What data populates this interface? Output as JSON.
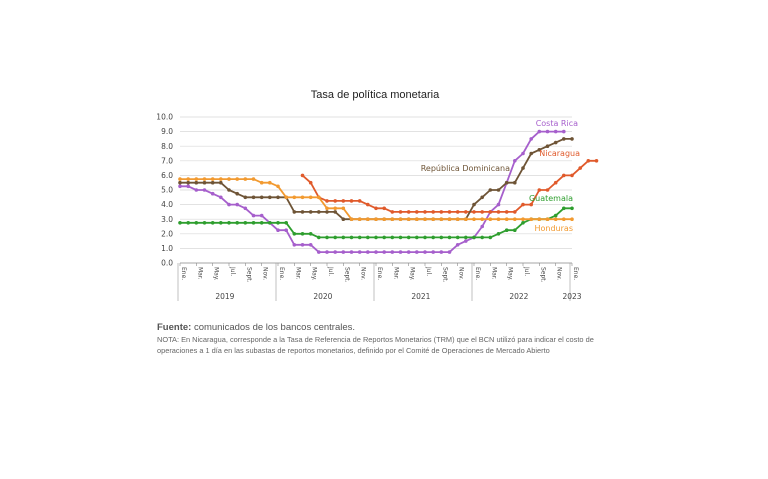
{
  "chart_data": {
    "type": "line",
    "title": "Tasa de política monetaria",
    "y_ticks": [
      "0.0",
      "1.0",
      "2.0",
      "3.0",
      "4.0",
      "5.0",
      "6.0",
      "7.0",
      "8.0",
      "9.0",
      "10.0"
    ],
    "ylim": [
      0,
      10
    ],
    "x_range": [
      "2019-01",
      "2023-01"
    ],
    "x_tick_labels": [
      "Ene.",
      "Mar.",
      "May.",
      "Jul.",
      "Sept.",
      "Nov.",
      "Ene.",
      "Mar.",
      "May.",
      "Jul.",
      "Sept.",
      "Nov.",
      "Ene.",
      "Mar.",
      "May.",
      "Jul.",
      "Sept.",
      "Nov.",
      "Ene.",
      "Mar.",
      "May.",
      "Jul.",
      "Sept.",
      "Nov.",
      "Ene."
    ],
    "year_labels": [
      "2019",
      "2020",
      "2021",
      "2022",
      "2023"
    ],
    "grid": true,
    "series": [
      {
        "name": "Costa Rica",
        "color": "#a65fcc",
        "x_start": "2019-01",
        "values": [
          5.25,
          5.25,
          5.0,
          5.0,
          4.75,
          4.5,
          4.0,
          4.0,
          3.75,
          3.25,
          3.25,
          2.75,
          2.25,
          2.25,
          1.25,
          1.25,
          1.25,
          0.75,
          0.75,
          0.75,
          0.75,
          0.75,
          0.75,
          0.75,
          0.75,
          0.75,
          0.75,
          0.75,
          0.75,
          0.75,
          0.75,
          0.75,
          0.75,
          0.75,
          1.25,
          1.5,
          1.75,
          2.5,
          3.5,
          4.0,
          5.5,
          7.0,
          7.5,
          8.5,
          9.0,
          9.0,
          9.0,
          9.0
        ]
      },
      {
        "name": "Nicaragua",
        "color": "#e05a2b",
        "x_start": "2020-04",
        "values": [
          6.0,
          5.5,
          4.5,
          4.25,
          4.25,
          4.25,
          4.25,
          4.25,
          4.0,
          3.75,
          3.75,
          3.5,
          3.5,
          3.5,
          3.5,
          3.5,
          3.5,
          3.5,
          3.5,
          3.5,
          3.5,
          3.5,
          3.5,
          3.5,
          3.5,
          3.5,
          3.5,
          4.0,
          4.0,
          5.0,
          5.0,
          5.5,
          6.0,
          6.0,
          6.5,
          7.0,
          7.0
        ]
      },
      {
        "name": "República Dominicana",
        "color": "#6e5436",
        "x_start": "2019-01",
        "values": [
          5.5,
          5.5,
          5.5,
          5.5,
          5.5,
          5.5,
          5.0,
          4.75,
          4.5,
          4.5,
          4.5,
          4.5,
          4.5,
          4.5,
          3.5,
          3.5,
          3.5,
          3.5,
          3.5,
          3.5,
          3.0,
          3.0,
          3.0,
          3.0,
          3.0,
          3.0,
          3.0,
          3.0,
          3.0,
          3.0,
          3.0,
          3.0,
          3.0,
          3.0,
          3.0,
          3.0,
          4.0,
          4.5,
          5.0,
          5.0,
          5.5,
          5.5,
          6.5,
          7.5,
          7.75,
          8.0,
          8.25,
          8.5,
          8.5
        ]
      },
      {
        "name": "Guatemala",
        "color": "#2e9e2e",
        "x_start": "2019-01",
        "values": [
          2.75,
          2.75,
          2.75,
          2.75,
          2.75,
          2.75,
          2.75,
          2.75,
          2.75,
          2.75,
          2.75,
          2.75,
          2.75,
          2.75,
          2.0,
          2.0,
          2.0,
          1.75,
          1.75,
          1.75,
          1.75,
          1.75,
          1.75,
          1.75,
          1.75,
          1.75,
          1.75,
          1.75,
          1.75,
          1.75,
          1.75,
          1.75,
          1.75,
          1.75,
          1.75,
          1.75,
          1.75,
          1.75,
          1.75,
          2.0,
          2.25,
          2.25,
          2.75,
          3.0,
          3.0,
          3.0,
          3.25,
          3.75,
          3.75
        ]
      },
      {
        "name": "Honduras",
        "color": "#f29a30",
        "x_start": "2019-01",
        "values": [
          5.75,
          5.75,
          5.75,
          5.75,
          5.75,
          5.75,
          5.75,
          5.75,
          5.75,
          5.75,
          5.5,
          5.5,
          5.25,
          4.5,
          4.5,
          4.5,
          4.5,
          4.5,
          3.75,
          3.75,
          3.75,
          3.0,
          3.0,
          3.0,
          3.0,
          3.0,
          3.0,
          3.0,
          3.0,
          3.0,
          3.0,
          3.0,
          3.0,
          3.0,
          3.0,
          3.0,
          3.0,
          3.0,
          3.0,
          3.0,
          3.0,
          3.0,
          3.0,
          3.0,
          3.0,
          3.0,
          3.0,
          3.0,
          3.0
        ]
      }
    ]
  },
  "footer": {
    "source_label": "Fuente:",
    "source_text": "comunicados de los bancos centrales.",
    "note": "NOTA: En Nicaragua, corresponde a la Tasa de Referencia de Reportos Monetarios (TRM) que el BCN utilizó para indicar el costo de operaciones a 1 día en las subastas de reportos monetarios, definido por el Comité de Operaciones de Mercado Abierto"
  }
}
